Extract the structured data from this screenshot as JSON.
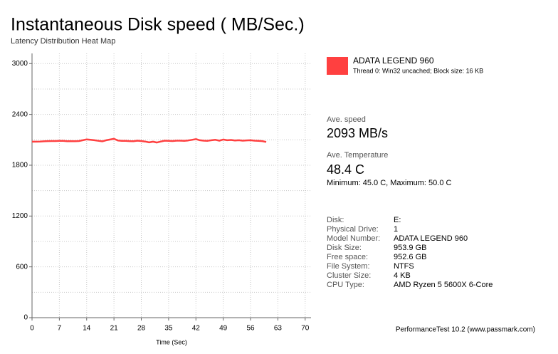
{
  "chart_data": {
    "type": "line",
    "title": "Instantaneous Disk speed ( MB/Sec.)",
    "subtitle": "Latency Distribution Heat Map",
    "x_label": "Time (Sec)",
    "x": [
      0,
      1,
      2,
      3,
      4,
      5,
      6,
      7,
      8,
      9,
      10,
      11,
      12,
      13,
      14,
      15,
      16,
      17,
      18,
      19,
      20,
      21,
      22,
      23,
      24,
      25,
      26,
      27,
      28,
      29,
      30,
      31,
      32,
      33,
      34,
      35,
      36,
      37,
      38,
      39,
      40,
      41,
      42,
      43,
      44,
      45,
      46,
      47,
      48,
      49,
      50,
      51,
      52,
      53,
      54,
      55,
      56,
      57,
      58,
      59,
      60
    ],
    "series": [
      {
        "name": "ADATA LEGEND 960",
        "color": "#ff4040",
        "values": [
          2078,
          2078,
          2079,
          2082,
          2085,
          2086,
          2086,
          2088,
          2087,
          2084,
          2085,
          2083,
          2086,
          2095,
          2105,
          2100,
          2095,
          2088,
          2082,
          2095,
          2103,
          2112,
          2092,
          2088,
          2087,
          2085,
          2084,
          2090,
          2086,
          2080,
          2070,
          2078,
          2068,
          2080,
          2090,
          2088,
          2086,
          2090,
          2090,
          2088,
          2092,
          2100,
          2108,
          2095,
          2090,
          2088,
          2095,
          2100,
          2090,
          2103,
          2095,
          2098,
          2092,
          2095,
          2090,
          2093,
          2095,
          2090,
          2088,
          2085,
          2075
        ]
      }
    ],
    "xlim": [
      0,
      71.5
    ],
    "xticks": [
      0,
      7,
      14,
      21,
      28,
      35,
      42,
      49,
      56,
      63,
      70
    ],
    "ylim": [
      0,
      3120
    ],
    "yticks": [
      0,
      600,
      1200,
      1800,
      2400,
      3000
    ],
    "y_minor_gridlines": [
      300,
      900,
      1500,
      2100,
      2700
    ],
    "grid": true
  },
  "legend_detail": "Thread 0: Win32 uncached; Block size: 16 KB",
  "stats": {
    "speed_label": "Ave. speed",
    "speed": "2093 MB/s",
    "temp_label": "Ave. Temperature",
    "temp": "48.4 C",
    "temp_range": "Minimum: 45.0 C, Maximum: 50.0 C"
  },
  "details": [
    {
      "label": "Disk:",
      "value": "E:"
    },
    {
      "label": "Physical Drive:",
      "value": "1"
    },
    {
      "label": "Model Number:",
      "value": "ADATA LEGEND 960"
    },
    {
      "label": "Disk Size:",
      "value": "953.9 GB"
    },
    {
      "label": "Free space:",
      "value": "952.6 GB"
    },
    {
      "label": "File System:",
      "value": "NTFS"
    },
    {
      "label": "Cluster Size:",
      "value": "4 KB"
    },
    {
      "label": "CPU Type:",
      "value": "AMD Ryzen 5 5600X 6-Core"
    }
  ],
  "footer": "PerformanceTest 10.2 (www.passmark.com)"
}
